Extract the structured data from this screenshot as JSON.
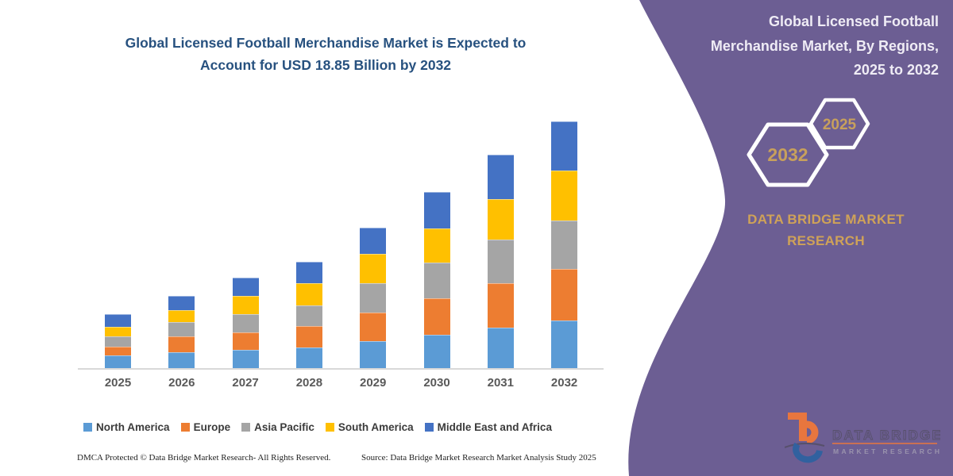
{
  "chart_panel": {
    "title": [
      "Global Licensed Football Merchandise Market is Expected to",
      "Account for USD 18.85 Billion by 2032"
    ],
    "title_color": "#27517f"
  },
  "chart_data": {
    "type": "bar",
    "stacked": true,
    "title": "Global Licensed Football Merchandise Market is Expected to Account for USD 18.85 Billion by 2032",
    "unit": "USD Billion",
    "categories": [
      "2025",
      "2026",
      "2027",
      "2028",
      "2029",
      "2030",
      "2031",
      "2032"
    ],
    "series": [
      {
        "name": "North America",
        "color": "#5B9BD5",
        "values": [
          1.0,
          1.2,
          1.4,
          1.6,
          2.05,
          2.55,
          3.1,
          3.65
        ]
      },
      {
        "name": "Europe",
        "color": "#ED7D31",
        "values": [
          0.65,
          1.2,
          1.35,
          1.6,
          2.2,
          2.8,
          3.4,
          3.95
        ]
      },
      {
        "name": "Asia Pacific",
        "color": "#A5A5A5",
        "values": [
          0.75,
          1.1,
          1.4,
          1.6,
          2.25,
          2.7,
          3.3,
          3.7
        ]
      },
      {
        "name": "South America",
        "color": "#FFC000",
        "values": [
          0.75,
          0.95,
          1.35,
          1.7,
          2.25,
          2.65,
          3.1,
          3.8
        ]
      },
      {
        "name": "Middle East and Africa",
        "color": "#4472C4",
        "values": [
          0.95,
          1.05,
          1.4,
          1.65,
          2.0,
          2.75,
          3.4,
          3.75
        ]
      }
    ],
    "totals_by_year": [
      4.1,
      5.5,
      6.9,
      8.15,
      10.75,
      13.45,
      16.3,
      18.85
    ],
    "annotation": "USD 18.85 Billion by 2032",
    "ylim": [
      0,
      18.85
    ],
    "grid": false,
    "y_axis_shown": false,
    "legend_position": "bottom",
    "values_note": "segment values estimated from bar pixel heights; only the 18.85B total is printed on the image"
  },
  "footer": {
    "dmca": "DMCA Protected © Data Bridge Market Research-  All Rights Reserved.",
    "source": "Source: Data Bridge Market Research  Market Analysis Study 2025"
  },
  "right_panel": {
    "background": "#6c5e93",
    "title_lines": [
      "Global Licensed Football",
      "Merchandise Market, By Regions,",
      "2025 to 2032"
    ],
    "hexagons": [
      {
        "label": "2032"
      },
      {
        "label": "2025"
      }
    ],
    "brand_lines": [
      "DATA BRIDGE MARKET",
      "RESEARCH"
    ],
    "accent_gold": "#cfa258",
    "logo": {
      "text_top": "DATA BRIDGE",
      "text_bottom": "MARKET RESEARCH",
      "orange": "#e8763e",
      "blue": "#31619f"
    }
  }
}
